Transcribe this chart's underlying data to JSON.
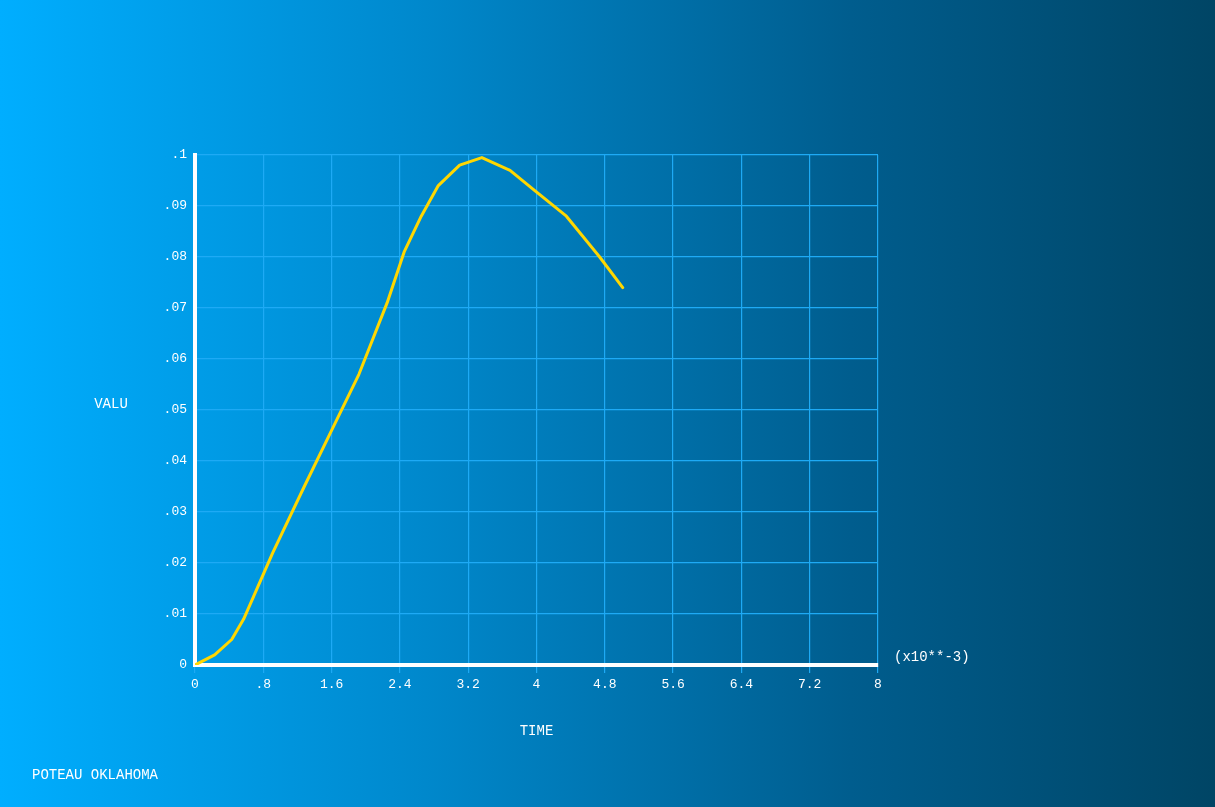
{
  "chart_data": {
    "type": "line",
    "xlabel": "TIME",
    "ylabel": "VALU",
    "annotations": [
      "(x10**-3)",
      "POTEAU OKLAHOMA"
    ],
    "x": [
      0,
      0.23,
      0.43,
      0.57,
      0.91,
      1.28,
      1.6,
      1.92,
      2.25,
      2.45,
      2.65,
      2.85,
      3.1,
      3.36,
      3.69,
      3.98,
      4.35,
      4.74,
      5.01
    ],
    "series": [
      {
        "color": "#ffd700",
        "values": [
          0,
          0.002,
          0.005,
          0.009,
          0.022,
          0.035,
          0.046,
          0.057,
          0.071,
          0.081,
          0.088,
          0.094,
          0.098,
          0.0995,
          0.097,
          0.093,
          0.088,
          0.08,
          0.074
        ]
      }
    ],
    "xlim": [
      0,
      8
    ],
    "xticks": [
      0,
      {
        "value": 0.8,
        "label": ".8"
      },
      1.6,
      2.4,
      3.2,
      4,
      4.8,
      5.6,
      6.4,
      7.2,
      8
    ],
    "ylim": [
      0,
      0.1
    ],
    "yticks": [
      0,
      {
        "value": 0.01,
        "label": ".01"
      },
      {
        "value": 0.02,
        "label": ".02"
      },
      {
        "value": 0.03,
        "label": ".03"
      },
      {
        "value": 0.04,
        "label": ".04"
      },
      {
        "value": 0.05,
        "label": ".05"
      },
      {
        "value": 0.06,
        "label": ".06"
      },
      {
        "value": 0.07,
        "label": ".07"
      },
      {
        "value": 0.08,
        "label": ".08"
      },
      {
        "value": 0.09,
        "label": ".09"
      },
      {
        "value": 0.1,
        "label": ".1"
      }
    ],
    "grid": true,
    "marker": "none",
    "line_style": "solid",
    "legend": false
  }
}
